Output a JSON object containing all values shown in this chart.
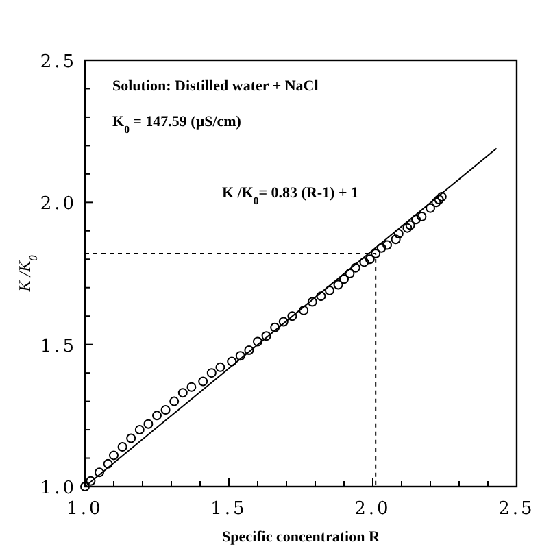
{
  "chart_data": {
    "type": "scatter",
    "xlabel": "Specific concentration R",
    "ylabel": "K /K$_{0}$",
    "xlim": [
      1.0,
      2.5
    ],
    "ylim": [
      1.0,
      2.5
    ],
    "xticks": [
      {
        "value": 1,
        "label": "1.0"
      },
      {
        "value": 1.1,
        "label": null
      },
      {
        "value": 1.2,
        "label": null
      },
      {
        "value": 1.3,
        "label": null
      },
      {
        "value": 1.4,
        "label": null
      },
      {
        "value": 1.5,
        "label": "1.5"
      },
      {
        "value": 1.6,
        "label": null
      },
      {
        "value": 1.7,
        "label": null
      },
      {
        "value": 1.8,
        "label": null
      },
      {
        "value": 1.9,
        "label": null
      },
      {
        "value": 2,
        "label": "2.0"
      },
      {
        "value": 2.1,
        "label": null
      },
      {
        "value": 2.2,
        "label": null
      },
      {
        "value": 2.3,
        "label": null
      },
      {
        "value": 2.4,
        "label": null
      },
      {
        "value": 2.5,
        "label": "2.5"
      }
    ],
    "yticks": [
      {
        "value": 1,
        "label": "1.0"
      },
      {
        "value": 1.1,
        "label": null
      },
      {
        "value": 1.2,
        "label": null
      },
      {
        "value": 1.3,
        "label": null
      },
      {
        "value": 1.4,
        "label": null
      },
      {
        "value": 1.5,
        "label": "1.5"
      },
      {
        "value": 1.6,
        "label": null
      },
      {
        "value": 1.7,
        "label": null
      },
      {
        "value": 1.8,
        "label": null
      },
      {
        "value": 1.9,
        "label": null
      },
      {
        "value": 2,
        "label": "2.0"
      },
      {
        "value": 2.1,
        "label": null
      },
      {
        "value": 2.2,
        "label": null
      },
      {
        "value": 2.3,
        "label": null
      },
      {
        "value": 2.4,
        "label": null
      },
      {
        "value": 2.5,
        "label": "2.5"
      }
    ],
    "grid": false,
    "annotations": [
      "Solution: Distilled water + NaCl",
      "K$_{0}$ = 147.59 (μS/cm)",
      "K /K$_{0}$= 0.83 (R-1) + 1"
    ],
    "series": [
      {
        "type": "scatter",
        "color": "#000000",
        "marker": "circle",
        "x": [
          1.0,
          1.02,
          1.05,
          1.08,
          1.1,
          1.13,
          1.16,
          1.19,
          1.22,
          1.25,
          1.28,
          1.31,
          1.34,
          1.37,
          1.41,
          1.44,
          1.47,
          1.51,
          1.54,
          1.57,
          1.6,
          1.63,
          1.66,
          1.69,
          1.72,
          1.76,
          1.79,
          1.82,
          1.85,
          1.88,
          1.9,
          1.92,
          1.94,
          1.97,
          1.99,
          2.01,
          2.03,
          2.05,
          2.08,
          2.09,
          2.12,
          2.13,
          2.15,
          2.17,
          2.2,
          2.22,
          2.23,
          2.24
        ],
        "values": [
          1.0,
          1.02,
          1.05,
          1.08,
          1.11,
          1.14,
          1.17,
          1.2,
          1.22,
          1.25,
          1.27,
          1.3,
          1.33,
          1.35,
          1.37,
          1.4,
          1.42,
          1.44,
          1.46,
          1.48,
          1.51,
          1.53,
          1.56,
          1.58,
          1.6,
          1.62,
          1.65,
          1.67,
          1.69,
          1.71,
          1.73,
          1.75,
          1.77,
          1.79,
          1.8,
          1.82,
          1.84,
          1.85,
          1.87,
          1.89,
          1.91,
          1.92,
          1.94,
          1.95,
          1.98,
          2.0,
          2.01,
          2.02
        ]
      },
      {
        "type": "line",
        "color": "#000000",
        "line_style": "solid",
        "x": [
          1.0,
          2.43
        ],
        "values": [
          1.0,
          2.19
        ]
      },
      {
        "type": "line",
        "color": "#000000",
        "line_style": "dashed",
        "x": [
          1.0,
          2.01,
          2.01
        ],
        "values": [
          1.82,
          1.82,
          1.0
        ]
      }
    ]
  }
}
